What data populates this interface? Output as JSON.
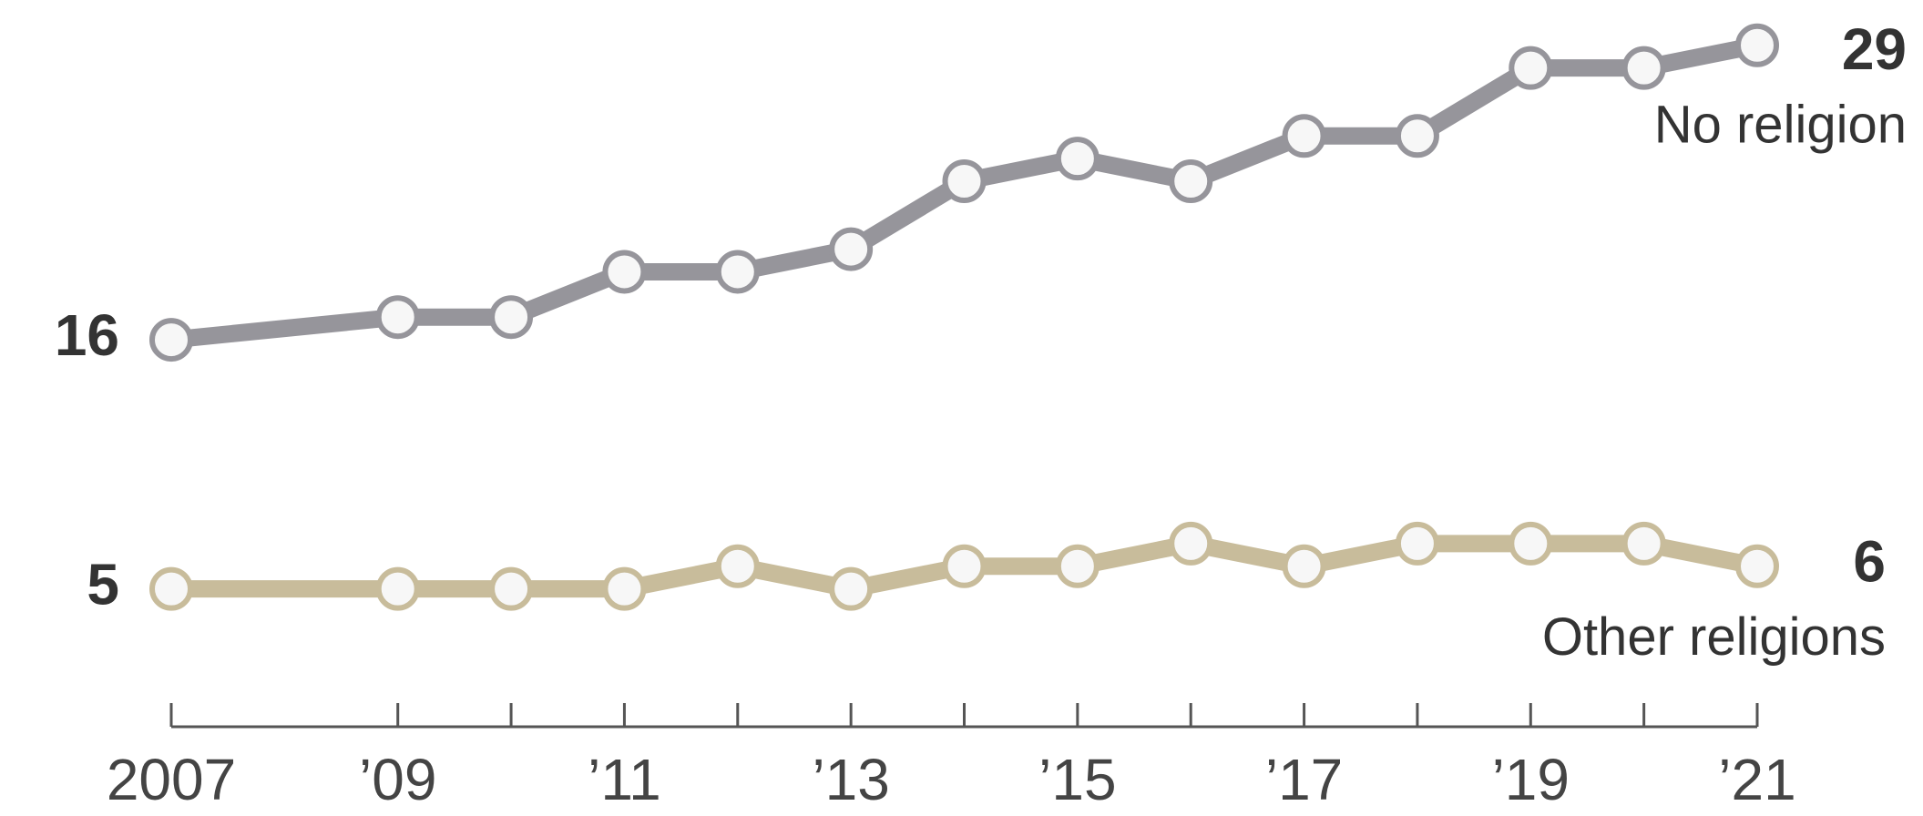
{
  "chart_data": {
    "type": "line",
    "x": [
      2007,
      2009,
      2010,
      2011,
      2012,
      2013,
      2014,
      2015,
      2016,
      2017,
      2018,
      2019,
      2020,
      2021
    ],
    "series": [
      {
        "name": "No religion",
        "color": "#96959b",
        "values": [
          16,
          17,
          17,
          19,
          19,
          20,
          23,
          24,
          23,
          25,
          25,
          28,
          28,
          29
        ]
      },
      {
        "name": "Other religions",
        "color": "#c8bc9b",
        "values": [
          5,
          5,
          5,
          5,
          6,
          5,
          6,
          6,
          7,
          6,
          7,
          7,
          7,
          6
        ]
      }
    ],
    "xlim": [
      2007,
      2021
    ],
    "ylim": [
      0,
      31
    ],
    "xticks": [
      {
        "value": 2007,
        "label": "2007"
      },
      {
        "value": 2009,
        "label": "’09"
      },
      {
        "value": 2011,
        "label": "’11"
      },
      {
        "value": 2013,
        "label": "’13"
      },
      {
        "value": 2015,
        "label": "’15"
      },
      {
        "value": 2017,
        "label": "’17"
      },
      {
        "value": 2019,
        "label": "’19"
      },
      {
        "value": 2021,
        "label": "’21"
      }
    ],
    "xminor_ticks": [
      2010,
      2012,
      2014,
      2016,
      2018,
      2020
    ],
    "marker_fill": "#f7f7f7"
  }
}
